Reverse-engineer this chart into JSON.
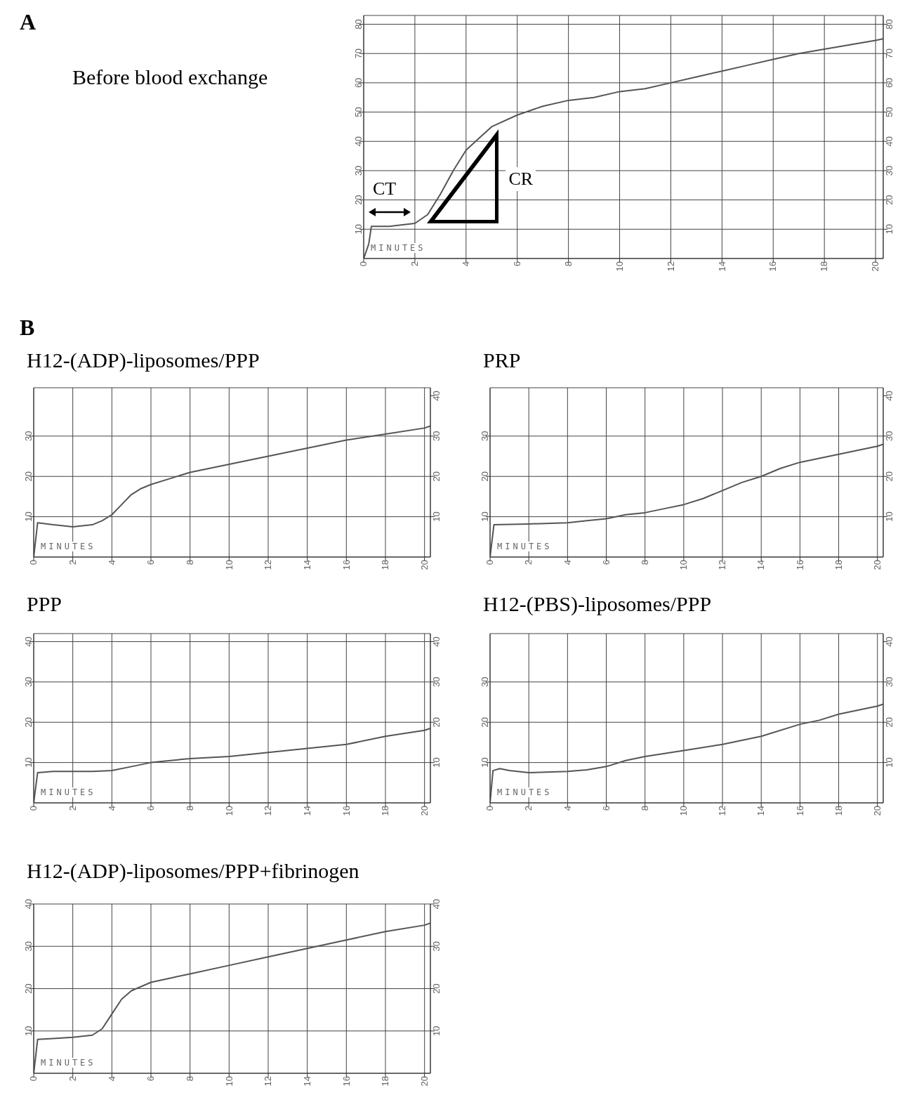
{
  "chart_data": [
    {
      "type": "line",
      "title": "Before blood exchange",
      "xlabel": "MINUTES",
      "annotations": [
        "A",
        "CT",
        "CR"
      ],
      "color": "#555555",
      "x": [
        0,
        0.2,
        0.3,
        1,
        2,
        2.5,
        3,
        3.5,
        4,
        4.5,
        5,
        6,
        7,
        8,
        9,
        10,
        11,
        12,
        13,
        14,
        15,
        16,
        17,
        18,
        19,
        20,
        20.3
      ],
      "values": [
        0,
        5,
        11,
        11,
        12,
        15,
        22,
        30,
        37,
        41,
        45,
        49,
        52,
        54,
        55,
        57,
        58,
        60,
        62,
        64,
        66,
        68,
        70,
        71.5,
        73,
        74.5,
        75
      ],
      "xlim": [
        0,
        20.3
      ],
      "xticks": [
        0,
        2,
        4,
        6,
        8,
        10,
        12,
        14,
        16,
        18,
        20
      ],
      "ylim": [
        0,
        83
      ],
      "yticks": [
        10,
        20,
        30,
        40,
        50,
        60,
        70,
        80
      ],
      "y2lim": [
        0,
        83
      ],
      "y2ticks": [
        10,
        20,
        30,
        40,
        50,
        60,
        70,
        80
      ],
      "grid": true
    },
    {
      "type": "line",
      "title": "H12-(ADP)-liposomes/PPP",
      "xlabel": "MINUTES",
      "annotations": [
        "B"
      ],
      "color": "#555555",
      "x": [
        0,
        0.2,
        1,
        2,
        3,
        3.5,
        4,
        4.5,
        5,
        5.5,
        6,
        7,
        8,
        9,
        10,
        12,
        14,
        16,
        18,
        20,
        20.3
      ],
      "values": [
        0,
        8.5,
        8,
        7.5,
        8,
        9,
        10.5,
        13,
        15.5,
        17,
        18,
        19.5,
        21,
        22,
        23,
        25,
        27,
        29,
        30.5,
        32,
        32.5
      ],
      "xlim": [
        0,
        20.3
      ],
      "xticks": [
        0,
        2,
        4,
        6,
        8,
        10,
        12,
        14,
        16,
        18,
        20
      ],
      "ylim": [
        0,
        42
      ],
      "yticks": [
        10,
        20,
        30
      ],
      "y2lim": [
        0,
        42
      ],
      "y2ticks": [
        10,
        20,
        30,
        40
      ],
      "grid": true
    },
    {
      "type": "line",
      "title": "PRP",
      "xlabel": "MINUTES",
      "color": "#555555",
      "x": [
        0,
        0.2,
        2,
        4,
        5,
        6,
        7,
        8,
        9,
        10,
        11,
        12,
        13,
        14,
        15,
        16,
        17,
        18,
        19,
        20,
        20.3
      ],
      "values": [
        0,
        8,
        8.2,
        8.5,
        9,
        9.5,
        10.5,
        11,
        12,
        13,
        14.5,
        16.5,
        18.5,
        20,
        22,
        23.5,
        24.5,
        25.5,
        26.5,
        27.5,
        28
      ],
      "xlim": [
        0,
        20.3
      ],
      "xticks": [
        0,
        2,
        4,
        6,
        8,
        10,
        12,
        14,
        16,
        18,
        20
      ],
      "ylim": [
        0,
        42
      ],
      "yticks": [
        10,
        20,
        30
      ],
      "y2lim": [
        0,
        42
      ],
      "y2ticks": [
        10,
        20,
        30,
        40
      ],
      "grid": true
    },
    {
      "type": "line",
      "title": "PPP",
      "xlabel": "MINUTES",
      "color": "#555555",
      "x": [
        0,
        0.2,
        1,
        3,
        4,
        5,
        6,
        7,
        8,
        10,
        12,
        14,
        16,
        18,
        20,
        20.3
      ],
      "values": [
        0,
        7.5,
        7.8,
        7.8,
        8,
        9,
        10,
        10.5,
        11,
        11.5,
        12.5,
        13.5,
        14.5,
        16.5,
        18,
        18.5
      ],
      "xlim": [
        0,
        20.3
      ],
      "xticks": [
        0,
        2,
        4,
        6,
        8,
        10,
        12,
        14,
        16,
        18,
        20
      ],
      "ylim": [
        0,
        42
      ],
      "yticks": [
        10,
        20,
        30,
        40
      ],
      "y2lim": [
        0,
        42
      ],
      "y2ticks": [
        10,
        20,
        30,
        40
      ],
      "grid": true
    },
    {
      "type": "line",
      "title": "H12-(PBS)-liposomes/PPP",
      "xlabel": "MINUTES",
      "color": "#555555",
      "x": [
        0,
        0.15,
        0.5,
        1,
        2,
        4,
        5,
        6,
        7,
        8,
        10,
        12,
        14,
        16,
        17,
        18,
        20,
        20.3
      ],
      "values": [
        0,
        8,
        8.5,
        8,
        7.5,
        7.8,
        8.2,
        9,
        10.5,
        11.5,
        13,
        14.5,
        16.5,
        19.5,
        20.5,
        22,
        24,
        24.5
      ],
      "xlim": [
        0,
        20.3
      ],
      "xticks": [
        0,
        2,
        4,
        6,
        8,
        10,
        12,
        14,
        16,
        18,
        20
      ],
      "ylim": [
        0,
        42
      ],
      "yticks": [
        10,
        20,
        30
      ],
      "y2lim": [
        0,
        42
      ],
      "y2ticks": [
        10,
        20,
        30,
        40
      ],
      "grid": true
    },
    {
      "type": "line",
      "title": "H12-(ADP)-liposomes/PPP+fibrinogen",
      "xlabel": "MINUTES",
      "color": "#555555",
      "x": [
        0,
        0.2,
        1,
        2,
        3,
        3.5,
        4,
        4.5,
        5,
        6,
        7,
        8,
        10,
        12,
        14,
        15,
        16,
        18,
        20,
        20.3
      ],
      "values": [
        0,
        8,
        8.2,
        8.5,
        9,
        10.5,
        14,
        17.5,
        19.5,
        21.5,
        22.5,
        23.5,
        25.5,
        27.5,
        29.5,
        30.5,
        31.5,
        33.5,
        35,
        35.5
      ],
      "xlim": [
        0,
        20.3
      ],
      "xticks": [
        0,
        2,
        4,
        6,
        8,
        10,
        12,
        14,
        16,
        18,
        20
      ],
      "ylim": [
        0,
        40
      ],
      "yticks": [
        10,
        20,
        30,
        40
      ],
      "y2lim": [
        0,
        40
      ],
      "y2ticks": [
        10,
        20,
        30,
        40
      ],
      "grid": true
    }
  ]
}
